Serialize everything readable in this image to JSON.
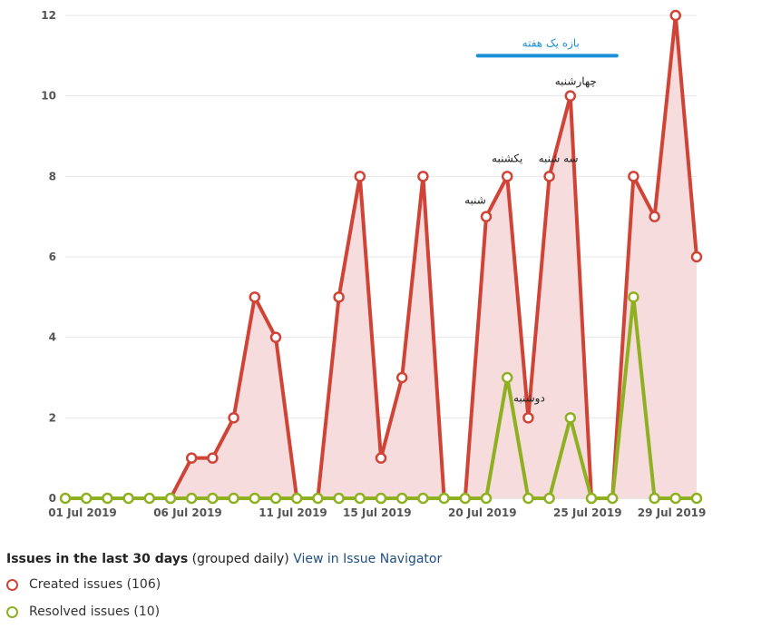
{
  "chart_data": {
    "type": "line",
    "x_tick_labels": [
      "01 Jul 2019",
      "06 Jul 2019",
      "11 Jul 2019",
      "15 Jul 2019",
      "20 Jul 2019",
      "25 Jul 2019",
      "29 Jul 2019"
    ],
    "x_tick_days": [
      1,
      6,
      11,
      15,
      20,
      25,
      29
    ],
    "y_ticks": [
      0,
      2,
      4,
      6,
      8,
      10,
      12
    ],
    "ylim": [
      0,
      12
    ],
    "xlim": [
      1,
      31
    ],
    "grid": true,
    "series": [
      {
        "name": "Created issues (106)",
        "color": "#d04437",
        "fill": "#f6dcdc",
        "x": [
          2,
          3,
          4,
          5,
          6,
          7,
          8,
          9,
          10,
          11,
          12,
          13,
          14,
          15,
          16,
          17,
          18,
          19,
          20,
          21,
          22,
          23,
          24,
          25,
          26,
          27,
          28,
          29,
          30,
          31
        ],
        "values": [
          0,
          0,
          0,
          0,
          0,
          1,
          1,
          2,
          5,
          4,
          0,
          0,
          5,
          8,
          1,
          3,
          8,
          0,
          0,
          7,
          8,
          2,
          8,
          10,
          0,
          0,
          8,
          7,
          12,
          6
        ]
      },
      {
        "name": "Resolved issues (10)",
        "color": "#8eb021",
        "x": [
          1,
          2,
          3,
          4,
          5,
          6,
          7,
          8,
          9,
          10,
          11,
          12,
          13,
          14,
          15,
          16,
          17,
          18,
          19,
          20,
          21,
          22,
          23,
          24,
          25,
          26,
          27,
          28,
          29,
          30,
          31
        ],
        "values": [
          0,
          0,
          0,
          0,
          0,
          0,
          0,
          0,
          0,
          0,
          0,
          0,
          0,
          0,
          0,
          0,
          0,
          0,
          0,
          0,
          0,
          3,
          0,
          0,
          2,
          0,
          0,
          5,
          0,
          0,
          0
        ]
      }
    ],
    "annotations": [
      {
        "text": "شنبه",
        "x": 21,
        "y": 7
      },
      {
        "text": "یکشنبه",
        "x": 22,
        "y": 8
      },
      {
        "text": "دوشنبه",
        "x": 23,
        "y": 2
      },
      {
        "text": "سه شنبه",
        "x": 24,
        "y": 8
      },
      {
        "text": "چهارشنبه",
        "x": 25,
        "y": 10
      }
    ],
    "range_marker": {
      "text": "بازه یک هفته",
      "x_start": 20.6,
      "x_end": 27.2,
      "y": 11.0,
      "color": "#1b90d6"
    }
  },
  "footer": {
    "title": "Issues in the last 30 days",
    "grouping": "(grouped daily)",
    "link": "View in Issue Navigator"
  },
  "legend": [
    {
      "label": "Created issues (106)",
      "color": "#d04437"
    },
    {
      "label": "Resolved issues (10)",
      "color": "#8eb021"
    }
  ]
}
